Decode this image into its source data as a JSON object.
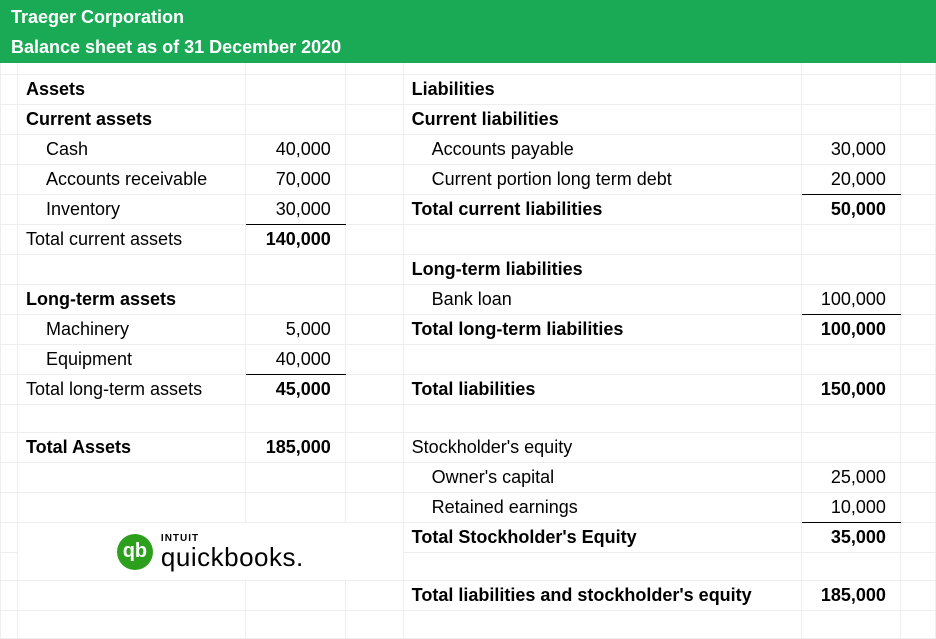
{
  "header": {
    "company": "Traeger Corporation",
    "subtitle": "Balance sheet as of 31 December 2020",
    "bg_color": "#1aaa55",
    "fg_color": "#ffffff"
  },
  "assets": {
    "title": "Assets",
    "current": {
      "title": "Current assets",
      "rows": [
        {
          "label": "Cash",
          "value": "40,000"
        },
        {
          "label": "Accounts receivable",
          "value": "70,000"
        },
        {
          "label": "Inventory",
          "value": "30,000"
        }
      ],
      "total_label": "Total current assets",
      "total_value": "140,000"
    },
    "longterm": {
      "title": "Long-term assets",
      "rows": [
        {
          "label": "Machinery",
          "value": "5,000"
        },
        {
          "label": "Equipment",
          "value": "40,000"
        }
      ],
      "total_label": "Total long-term assets",
      "total_value": "45,000"
    },
    "grand_total_label": "Total Assets",
    "grand_total_value": "185,000"
  },
  "liabilities": {
    "title": "Liabilities",
    "current": {
      "title": "Current liabilities",
      "rows": [
        {
          "label": "Accounts payable",
          "value": "30,000"
        },
        {
          "label": "Current portion long term debt",
          "value": "20,000"
        }
      ],
      "total_label": "Total current liabilities",
      "total_value": "50,000"
    },
    "longterm": {
      "title": "Long-term liabilities",
      "rows": [
        {
          "label": "Bank loan",
          "value": "100,000"
        }
      ],
      "total_label": "Total long-term liabilities",
      "total_value": "100,000"
    },
    "total_label": "Total liabilities",
    "total_value": "150,000"
  },
  "equity": {
    "title": "Stockholder's equity",
    "rows": [
      {
        "label": "Owner's capital",
        "value": "25,000"
      },
      {
        "label": "Retained earnings",
        "value": "10,000"
      }
    ],
    "total_label": "Total Stockholder's Equity",
    "total_value": "35,000"
  },
  "grand": {
    "label": "Total liabilities and stockholder's equity",
    "value": "185,000"
  },
  "logo": {
    "intuit": "INTUIT",
    "brand": "quickbooks.",
    "mark": "qb",
    "circle_color": "#2ca01c"
  }
}
